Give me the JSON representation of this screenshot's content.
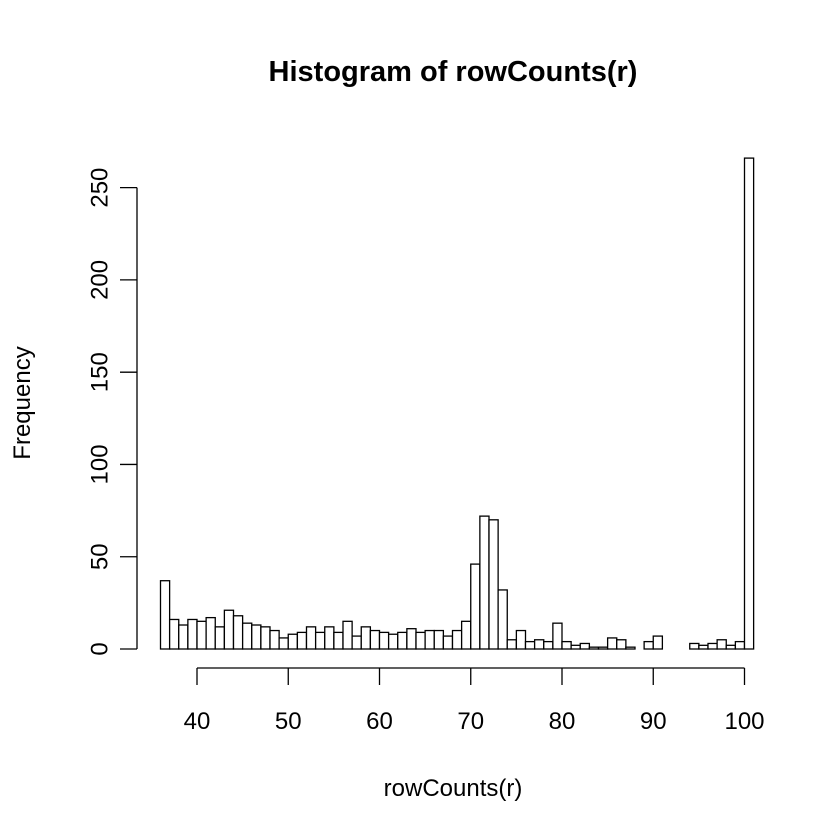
{
  "chart_data": {
    "type": "bar",
    "title": "Histogram of rowCounts(r)",
    "xlabel": "rowCounts(r)",
    "ylabel": "Frequency",
    "bin_width": 1,
    "bin_start": 36,
    "xlim": [
      36,
      100
    ],
    "ylim": [
      0,
      265
    ],
    "x_ticks": [
      40,
      50,
      60,
      70,
      80,
      90,
      100
    ],
    "y_ticks": [
      0,
      50,
      100,
      150,
      200,
      250
    ],
    "bar_fill": "#ffffff",
    "bar_stroke": "#000000",
    "values": [
      37,
      16,
      13,
      16,
      15,
      17,
      12,
      21,
      18,
      14,
      13,
      12,
      10,
      6,
      8,
      9,
      12,
      9,
      12,
      9,
      15,
      7,
      12,
      10,
      9,
      8,
      9,
      11,
      9,
      10,
      10,
      7,
      10,
      15,
      46,
      72,
      70,
      32,
      5,
      10,
      4,
      5,
      4,
      14,
      4,
      2,
      3,
      1,
      1,
      6,
      5,
      1,
      0,
      4,
      7,
      0,
      0,
      0,
      3,
      2,
      3,
      5,
      2,
      4,
      266
    ]
  }
}
